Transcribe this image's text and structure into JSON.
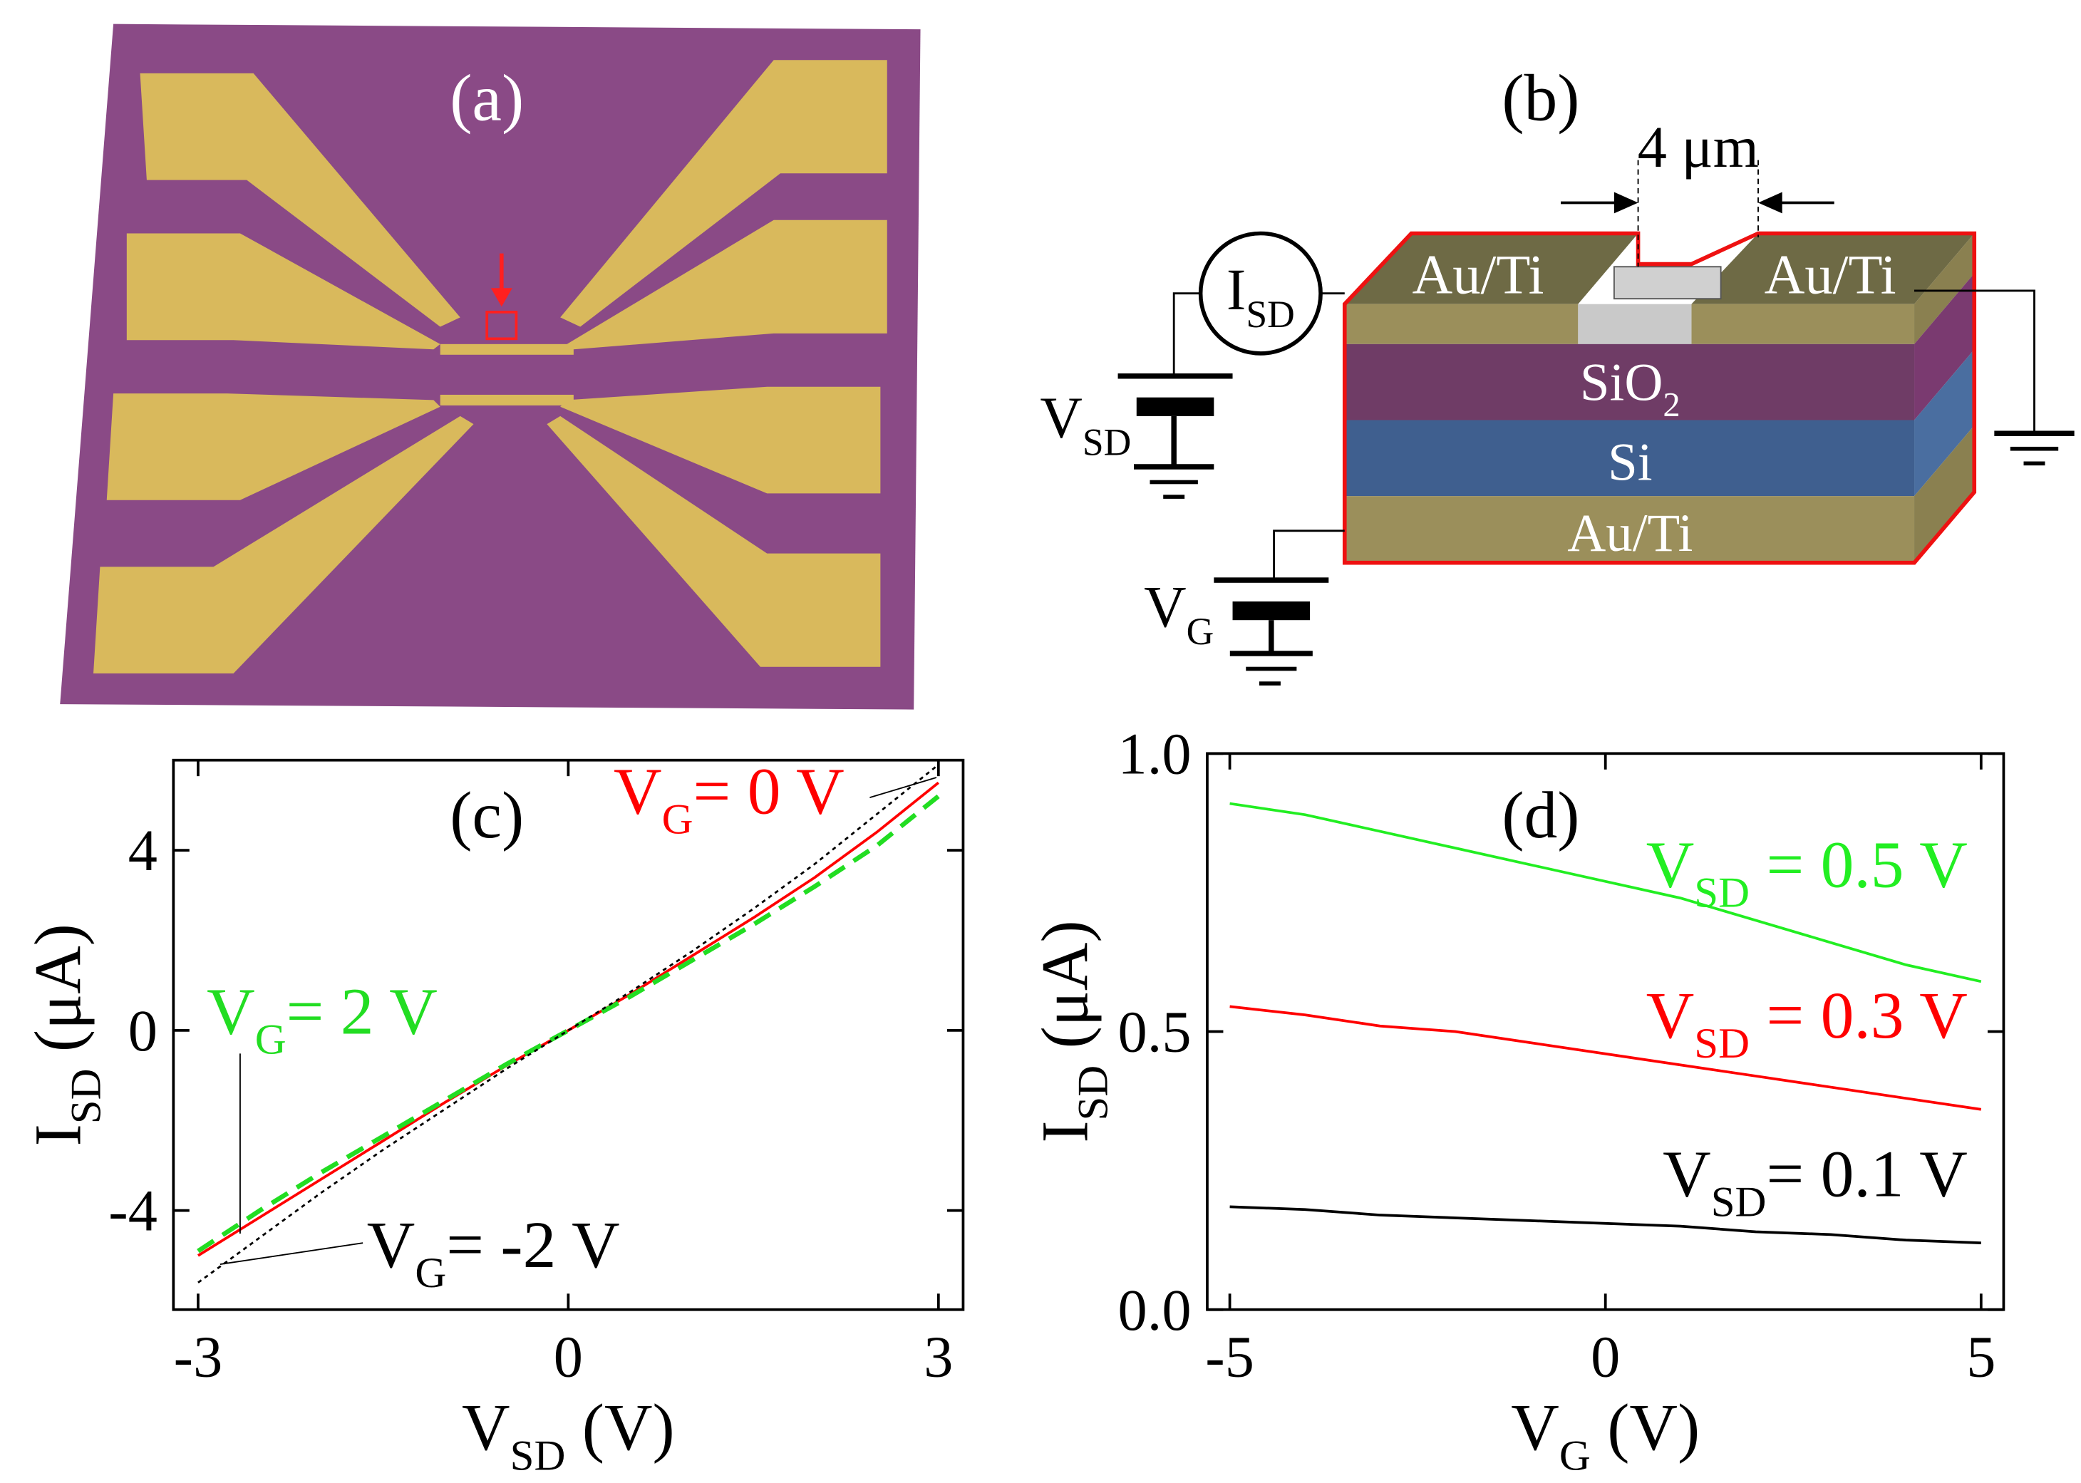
{
  "panel_a": {
    "label": "(a)"
  },
  "panel_b": {
    "label": "(b)",
    "gap": "4 μm",
    "top_left": "Au/Ti",
    "top_right": "Au/Ti",
    "oxide": [
      "SiO",
      "2"
    ],
    "substrate": "Si",
    "bottom": "Au/Ti",
    "current": [
      "I",
      "SD"
    ],
    "source_voltage": [
      "V",
      "SD"
    ],
    "gate_voltage": [
      "V",
      "G"
    ]
  },
  "chart_data": [
    {
      "type": "line",
      "label": "(c)",
      "xlabel": [
        "V",
        "SD",
        " (V)"
      ],
      "ylabel": [
        "I",
        "SD",
        " (μA)"
      ],
      "x": [
        -3,
        -2.5,
        -2,
        -1.5,
        -1,
        -0.5,
        0,
        0.5,
        1,
        1.5,
        2,
        2.5,
        3
      ],
      "xlim": [
        -3.2,
        3.2
      ],
      "xticks": [
        -3,
        0,
        3
      ],
      "ylim": [
        -6.2,
        6
      ],
      "yticks": [
        -4,
        0,
        4
      ],
      "series": [
        {
          "name": [
            "V",
            "G",
            "= 0 V"
          ],
          "color": "#ff0000",
          "line_style": "solid",
          "values": [
            -5.0,
            -4.15,
            -3.3,
            -2.45,
            -1.6,
            -0.78,
            0,
            0.8,
            1.65,
            2.5,
            3.4,
            4.4,
            5.5
          ]
        },
        {
          "name": [
            "V",
            "G",
            "= 2 V"
          ],
          "color": "#22dd22",
          "line_style": "dashed",
          "values": [
            -4.9,
            -4.0,
            -3.15,
            -2.35,
            -1.55,
            -0.75,
            0,
            0.75,
            1.55,
            2.35,
            3.2,
            4.1,
            5.2
          ]
        },
        {
          "name": [
            "V",
            "G",
            "= -2 V"
          ],
          "color": "#000000",
          "line_style": "dotted",
          "values": [
            -5.6,
            -4.6,
            -3.6,
            -2.65,
            -1.75,
            -0.85,
            0,
            0.85,
            1.75,
            2.7,
            3.7,
            4.8,
            5.9
          ]
        }
      ]
    },
    {
      "type": "line",
      "label": "(d)",
      "xlabel": [
        "V",
        "G",
        " (V)"
      ],
      "ylabel": [
        "I",
        "SD",
        " (μA)"
      ],
      "x": [
        -5,
        -4,
        -3,
        -2,
        -1,
        0,
        1,
        2,
        3,
        4,
        5
      ],
      "xlim": [
        -5.3,
        5.3
      ],
      "xticks": [
        -5,
        0,
        5
      ],
      "ylim": [
        0,
        1
      ],
      "yticks": [
        {
          "value": 0,
          "label": "0.0"
        },
        0.5,
        {
          "value": 1,
          "label": "1.0"
        }
      ],
      "series": [
        {
          "name": [
            "V",
            "SD",
            " = 0.5 V"
          ],
          "color": "#22ee22",
          "line_style": "solid",
          "values": [
            0.91,
            0.89,
            0.86,
            0.83,
            0.8,
            0.77,
            0.74,
            0.7,
            0.66,
            0.62,
            0.59
          ]
        },
        {
          "name": [
            "V",
            "SD",
            " = 0.3 V"
          ],
          "color": "#ff0000",
          "line_style": "solid",
          "values": [
            0.545,
            0.53,
            0.51,
            0.5,
            0.48,
            0.46,
            0.44,
            0.42,
            0.4,
            0.38,
            0.36
          ]
        },
        {
          "name": [
            "V",
            "SD",
            "= 0.1 V"
          ],
          "color": "#000000",
          "line_style": "solid",
          "values": [
            0.185,
            0.18,
            0.17,
            0.165,
            0.16,
            0.155,
            0.15,
            0.14,
            0.135,
            0.125,
            0.12
          ]
        }
      ]
    }
  ]
}
